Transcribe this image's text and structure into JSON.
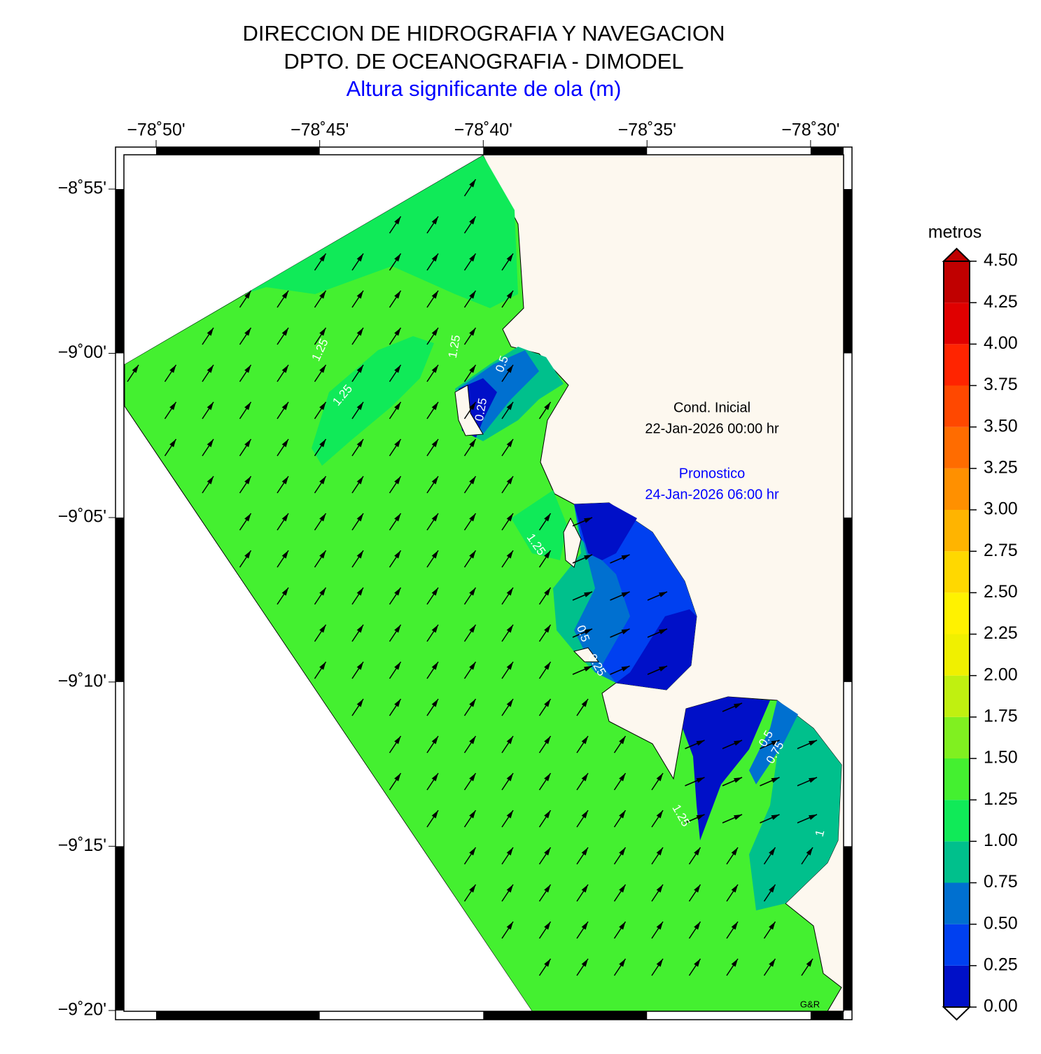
{
  "title": [
    "DIRECCION DE HIDROGRAFIA Y NAVEGACION",
    "DPTO. DE OCEANOGRAFIA - DIMODEL",
    "Altura significante de ola (m)"
  ],
  "map": {
    "xlim": [
      -78.8497,
      -78.4832
    ],
    "ylim": [
      -9.3337,
      -8.8993
    ],
    "xticks": [
      {
        "value": -78.8333,
        "label": "−78˚50'"
      },
      {
        "value": -78.75,
        "label": "−78˚45'"
      },
      {
        "value": -78.6667,
        "label": "−78˚40'"
      },
      {
        "value": -78.5833,
        "label": "−78˚35'"
      },
      {
        "value": -78.5,
        "label": "−78˚30'"
      }
    ],
    "yticks": [
      {
        "value": -8.9167,
        "label": "−8˚55'"
      },
      {
        "value": -9.0,
        "label": "−9˚00'"
      },
      {
        "value": -9.0833,
        "label": "−9˚05'"
      },
      {
        "value": -9.1667,
        "label": "−9˚10'"
      },
      {
        "value": -9.25,
        "label": "−9˚15'"
      },
      {
        "value": -9.3333,
        "label": "−9˚20'"
      }
    ],
    "annotations": [
      "Cond. Inicial",
      "22-Jan-2026 00:00 hr",
      "Pronostico",
      "24-Jan-2026 06:00 hr"
    ],
    "credit": "G&R",
    "contour_labels": [
      "1.25",
      "1.25",
      "1.25",
      "0.5",
      "0.25",
      "1.25",
      "0.5",
      "0.25",
      "0.5",
      "0.75",
      "1.25",
      "1"
    ]
  },
  "colorbar": {
    "label": "metros",
    "ticks": [
      {
        "value": 0,
        "label": "0.00"
      },
      {
        "value": 0.25,
        "label": "0.25"
      },
      {
        "value": 0.5,
        "label": "0.50"
      },
      {
        "value": 0.75,
        "label": "0.75"
      },
      {
        "value": 1,
        "label": "1.00"
      },
      {
        "value": 1.25,
        "label": "1.25"
      },
      {
        "value": 1.5,
        "label": "1.50"
      },
      {
        "value": 1.75,
        "label": "1.75"
      },
      {
        "value": 2,
        "label": "2.00"
      },
      {
        "value": 2.25,
        "label": "2.25"
      },
      {
        "value": 2.5,
        "label": "2.50"
      },
      {
        "value": 2.75,
        "label": "2.75"
      },
      {
        "value": 3,
        "label": "3.00"
      },
      {
        "value": 3.25,
        "label": "3.25"
      },
      {
        "value": 3.5,
        "label": "3.50"
      },
      {
        "value": 3.75,
        "label": "3.75"
      },
      {
        "value": 4,
        "label": "4.00"
      },
      {
        "value": 4.25,
        "label": "4.25"
      },
      {
        "value": 4.5,
        "label": "4.50"
      }
    ],
    "colors": [
      "#0010c8",
      "#0040f0",
      "#0070d0",
      "#00c08c",
      "#10ea58",
      "#44f030",
      "#80f020",
      "#c0f010",
      "#f0f000",
      "#fff200",
      "#ffd800",
      "#ffb400",
      "#ff9000",
      "#ff6c00",
      "#ff4800",
      "#ff2400",
      "#e00000",
      "#c00000"
    ]
  }
}
